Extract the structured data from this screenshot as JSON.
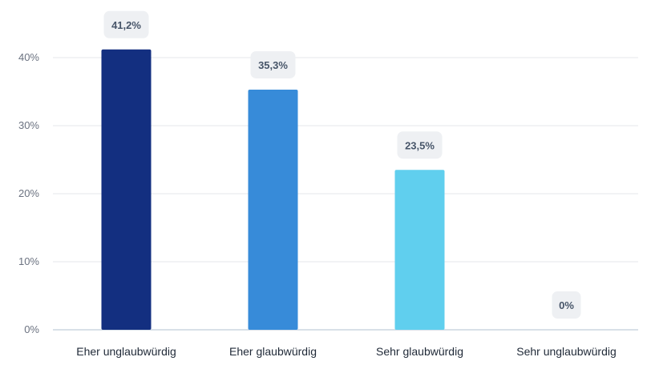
{
  "chart_data": {
    "type": "bar",
    "categories": [
      "Eher unglaubwürdig",
      "Eher glaubwürdig",
      "Sehr glaubwürdig",
      "Sehr unglaubwürdig"
    ],
    "values": [
      41.2,
      35.3,
      23.5,
      0
    ],
    "data_labels": [
      "41,2%",
      "35,3%",
      "23,5%",
      "0%"
    ],
    "bar_colors": [
      "#132f80",
      "#378bd9",
      "#60cfee",
      "#60cfee"
    ],
    "yticks": [
      0,
      10,
      20,
      30,
      40
    ],
    "ytick_labels": [
      "0%",
      "10%",
      "20%",
      "30%",
      "40%"
    ],
    "ylim": [
      0,
      40
    ],
    "grid": true,
    "legend": "none",
    "colors": {
      "grid": "#e5e7eb",
      "axis": "#cbd5e1",
      "label_bg": "#eef0f3"
    }
  }
}
